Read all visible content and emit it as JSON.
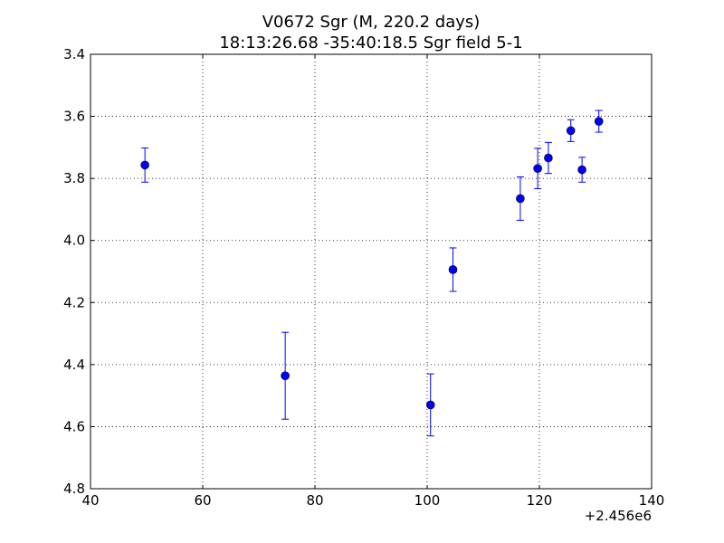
{
  "chart_data": {
    "type": "scatter",
    "title_line1": "V0672 Sgr  (M, 220.2 days)",
    "title_line2": "18:13:26.68 -35:40:18.5 Sgr field 5-1",
    "xlabel": "",
    "ylabel": "",
    "x_offset_label": "+2.456e6",
    "xlim": [
      40,
      140
    ],
    "ylim": [
      3.4,
      4.8
    ],
    "y_inverted": true,
    "grid": true,
    "x_ticks": [
      40,
      60,
      80,
      100,
      120,
      140
    ],
    "x_tick_labels": [
      "40",
      "60",
      "80",
      "100",
      "120",
      "140"
    ],
    "y_ticks": [
      3.4,
      3.6,
      3.8,
      4.0,
      4.2,
      4.4,
      4.6,
      4.8
    ],
    "y_tick_labels": [
      "3.4",
      "3.6",
      "3.8",
      "4.0",
      "4.2",
      "4.4",
      "4.6",
      "4.8"
    ],
    "marker_color": "#0000ff",
    "points": [
      {
        "x": 49.7,
        "y": 3.757,
        "err": 0.055
      },
      {
        "x": 74.7,
        "y": 4.436,
        "err": 0.14
      },
      {
        "x": 100.6,
        "y": 4.53,
        "err": 0.1
      },
      {
        "x": 104.6,
        "y": 4.094,
        "err": 0.07
      },
      {
        "x": 116.6,
        "y": 3.865,
        "err": 0.07
      },
      {
        "x": 119.7,
        "y": 3.768,
        "err": 0.065
      },
      {
        "x": 121.6,
        "y": 3.734,
        "err": 0.05
      },
      {
        "x": 125.6,
        "y": 3.646,
        "err": 0.035
      },
      {
        "x": 127.6,
        "y": 3.772,
        "err": 0.04
      },
      {
        "x": 130.6,
        "y": 3.616,
        "err": 0.035
      }
    ]
  }
}
